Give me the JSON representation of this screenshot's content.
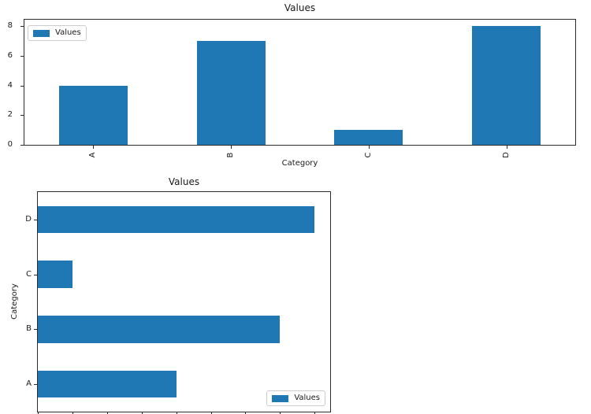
{
  "figure": {
    "background": "#ffffff",
    "bar_color": "#1f77b4",
    "axis_color": "#2b2b2b",
    "text_color": "#191919",
    "legend_border_color": "#cccccc"
  },
  "chart_data": [
    {
      "type": "bar",
      "orientation": "vertical",
      "title": "Values",
      "xlabel": "Category",
      "ylabel": "",
      "categories": [
        "A",
        "B",
        "C",
        "D"
      ],
      "series": [
        {
          "name": "Values",
          "values": [
            4,
            7,
            1,
            8
          ]
        }
      ],
      "ylim": [
        0,
        8.45
      ],
      "yticks": [
        0,
        2,
        4,
        6,
        8
      ],
      "x_tick_label_rotation_deg": 90,
      "legend_position": "upper left",
      "grid": false
    },
    {
      "type": "bar",
      "orientation": "horizontal",
      "title": "Values",
      "xlabel": "",
      "ylabel": "Category",
      "categories": [
        "A",
        "B",
        "C",
        "D"
      ],
      "series": [
        {
          "name": "Values",
          "values": [
            4,
            7,
            1,
            8
          ]
        }
      ],
      "xlim": [
        0,
        8.45
      ],
      "xticks": [
        0,
        1,
        2,
        3,
        4,
        5,
        6,
        7,
        8
      ],
      "x_tick_labels_visible": false,
      "legend_position": "lower right",
      "grid": false
    }
  ]
}
